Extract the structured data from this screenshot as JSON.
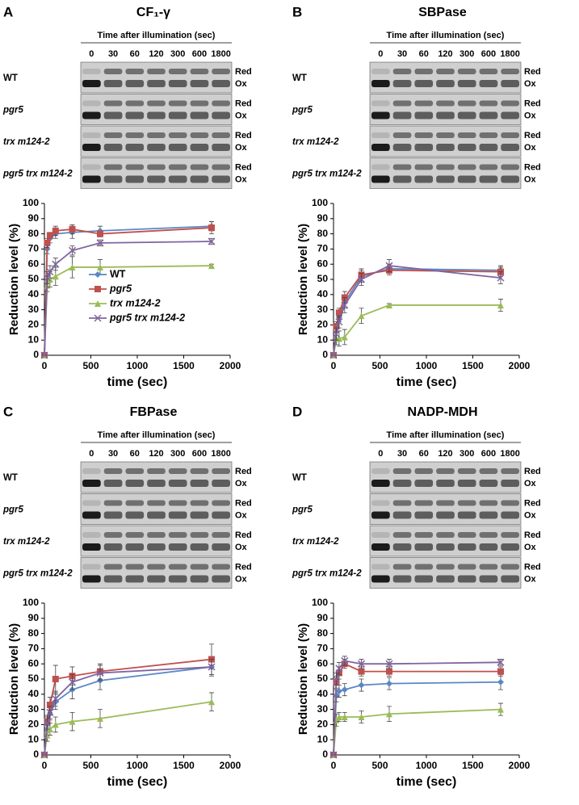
{
  "chart_data": [
    {
      "panel": "A",
      "title": "CF₁-γ",
      "type": "line",
      "blot": {
        "header": "Time after illumination (sec)",
        "times": [
          0,
          30,
          60,
          120,
          300,
          600,
          1800
        ],
        "rows": [
          "WT",
          "pgr5",
          "trx m124-2",
          "pgr5 trx m124-2"
        ],
        "bands": [
          "Red",
          "Ox"
        ]
      },
      "x": [
        0,
        30,
        60,
        120,
        300,
        600,
        1800
      ],
      "xlim": [
        0,
        2000
      ],
      "xticks": [
        0,
        500,
        1000,
        1500,
        2000
      ],
      "ylim": [
        0,
        100
      ],
      "yticks": [
        0,
        10,
        20,
        30,
        40,
        50,
        60,
        70,
        80,
        90,
        100
      ],
      "xlabel": "time (sec)",
      "ylabel": "Reduction level (%)",
      "legend": "center",
      "series": [
        {
          "name": "WT",
          "color": "#5b87c5",
          "marker": "diamond",
          "values": [
            0,
            70,
            77,
            80,
            81,
            82,
            85
          ],
          "errors": [
            0,
            3,
            3,
            3,
            4,
            3,
            3
          ]
        },
        {
          "name": "pgr5",
          "color": "#c0504d",
          "marker": "square",
          "values": [
            0,
            74,
            79,
            82,
            83,
            80,
            84
          ],
          "errors": [
            0,
            3,
            2,
            3,
            3,
            2,
            4
          ]
        },
        {
          "name": "trx m124-2",
          "color": "#9bbb59",
          "marker": "triangle",
          "values": [
            0,
            46,
            50,
            52,
            58,
            58,
            59
          ],
          "errors": [
            0,
            4,
            5,
            6,
            7,
            5,
            1
          ]
        },
        {
          "name": "pgr5 trx m124-2",
          "color": "#8064a2",
          "marker": "x",
          "values": [
            0,
            51,
            55,
            60,
            69,
            74,
            75
          ],
          "errors": [
            0,
            4,
            4,
            4,
            3,
            2,
            2
          ]
        }
      ]
    },
    {
      "panel": "B",
      "title": "SBPase",
      "type": "line",
      "blot": {
        "header": "Time after illumination (sec)",
        "times": [
          0,
          30,
          60,
          120,
          300,
          600,
          1800
        ],
        "rows": [
          "WT",
          "pgr5",
          "trx m124-2",
          "pgr5 trx m124-2"
        ],
        "bands": [
          "Red",
          "Ox"
        ]
      },
      "x": [
        0,
        30,
        60,
        120,
        300,
        600,
        1800
      ],
      "xlim": [
        0,
        2000
      ],
      "xticks": [
        0,
        500,
        1000,
        1500,
        2000
      ],
      "ylim": [
        0,
        100
      ],
      "yticks": [
        0,
        10,
        20,
        30,
        40,
        50,
        60,
        70,
        80,
        90,
        100
      ],
      "xlabel": "time (sec)",
      "ylabel": "Reduction level (%)",
      "series": [
        {
          "color": "#5b87c5",
          "marker": "diamond",
          "values": [
            0,
            18,
            25,
            35,
            52,
            57,
            56
          ],
          "errors": [
            0,
            3,
            3,
            4,
            4,
            3,
            3
          ]
        },
        {
          "color": "#c0504d",
          "marker": "square",
          "values": [
            0,
            19,
            28,
            38,
            53,
            56,
            55
          ],
          "errors": [
            0,
            3,
            3,
            4,
            4,
            3,
            3
          ]
        },
        {
          "color": "#9bbb59",
          "marker": "triangle",
          "values": [
            0,
            11,
            11,
            12,
            26,
            33,
            33
          ],
          "errors": [
            0,
            4,
            5,
            5,
            5,
            1,
            4
          ]
        },
        {
          "color": "#8064a2",
          "marker": "x",
          "values": [
            0,
            14,
            22,
            33,
            50,
            59,
            51
          ],
          "errors": [
            0,
            4,
            4,
            5,
            4,
            4,
            4
          ]
        }
      ]
    },
    {
      "panel": "C",
      "title": "FBPase",
      "type": "line",
      "blot": {
        "header": "Time after illumination (sec)",
        "times": [
          0,
          30,
          60,
          120,
          300,
          600,
          1800
        ],
        "rows": [
          "WT",
          "pgr5",
          "trx m124-2",
          "pgr5 trx m124-2"
        ],
        "bands": [
          "Red",
          "Ox"
        ]
      },
      "x": [
        0,
        30,
        60,
        120,
        300,
        600,
        1800
      ],
      "xlim": [
        0,
        2000
      ],
      "xticks": [
        0,
        500,
        1000,
        1500,
        2000
      ],
      "ylim": [
        0,
        100
      ],
      "yticks": [
        0,
        10,
        20,
        30,
        40,
        50,
        60,
        70,
        80,
        90,
        100
      ],
      "xlabel": "time (sec)",
      "ylabel": "Reduction level (%)",
      "series": [
        {
          "color": "#5b87c5",
          "marker": "diamond",
          "values": [
            0,
            20,
            27,
            35,
            43,
            49,
            58
          ],
          "errors": [
            0,
            4,
            4,
            5,
            6,
            6,
            6
          ]
        },
        {
          "color": "#c0504d",
          "marker": "square",
          "values": [
            0,
            22,
            33,
            50,
            52,
            55,
            63
          ],
          "errors": [
            0,
            4,
            5,
            9,
            6,
            5,
            10
          ]
        },
        {
          "color": "#9bbb59",
          "marker": "triangle",
          "values": [
            0,
            13,
            17,
            20,
            22,
            24,
            35
          ],
          "errors": [
            0,
            4,
            4,
            5,
            6,
            6,
            6
          ]
        },
        {
          "color": "#8064a2",
          "marker": "x",
          "values": [
            0,
            21,
            28,
            37,
            48,
            54,
            58
          ],
          "errors": [
            0,
            4,
            4,
            5,
            5,
            5,
            5
          ]
        }
      ]
    },
    {
      "panel": "D",
      "title": "NADP-MDH",
      "type": "line",
      "blot": {
        "header": "Time after illumination (sec)",
        "times": [
          0,
          30,
          60,
          120,
          300,
          600,
          1800
        ],
        "rows": [
          "WT",
          "pgr5",
          "trx m124-2",
          "pgr5 trx m124-2"
        ],
        "bands": [
          "Red",
          "Ox"
        ]
      },
      "x": [
        0,
        30,
        60,
        120,
        300,
        600,
        1800
      ],
      "xlim": [
        0,
        2000
      ],
      "xticks": [
        0,
        500,
        1000,
        1500,
        2000
      ],
      "ylim": [
        0,
        100
      ],
      "yticks": [
        0,
        10,
        20,
        30,
        40,
        50,
        60,
        70,
        80,
        90,
        100
      ],
      "xlabel": "time (sec)",
      "ylabel": "Reduction level (%)",
      "series": [
        {
          "color": "#5b87c5",
          "marker": "diamond",
          "values": [
            0,
            39,
            42,
            43,
            46,
            47,
            48
          ],
          "errors": [
            0,
            4,
            4,
            4,
            4,
            4,
            5
          ]
        },
        {
          "color": "#c0504d",
          "marker": "square",
          "values": [
            0,
            48,
            54,
            60,
            55,
            55,
            55
          ],
          "errors": [
            0,
            4,
            4,
            3,
            3,
            3,
            3
          ]
        },
        {
          "color": "#9bbb59",
          "marker": "triangle",
          "values": [
            0,
            23,
            25,
            25,
            25,
            27,
            30
          ],
          "errors": [
            0,
            4,
            3,
            3,
            4,
            5,
            4
          ]
        },
        {
          "color": "#8064a2",
          "marker": "x",
          "values": [
            0,
            50,
            57,
            62,
            60,
            60,
            61
          ],
          "errors": [
            0,
            4,
            4,
            3,
            3,
            3,
            2
          ]
        }
      ]
    }
  ]
}
